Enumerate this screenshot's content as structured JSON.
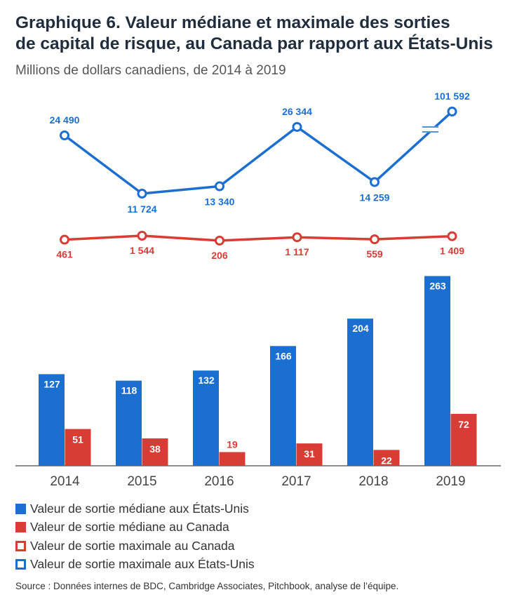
{
  "header": {
    "title_line1": "Graphique 6. Valeur médiane et maximale des sorties",
    "title_line2": "de capital de risque, au Canada par rapport aux États-Unis",
    "subtitle": "Millions de dollars canadiens, de 2014 à 2019"
  },
  "colors": {
    "us": "#1a6fd1",
    "canada": "#d93b35"
  },
  "chart_data": {
    "type": "bar",
    "categories": [
      "2014",
      "2015",
      "2016",
      "2017",
      "2018",
      "2019"
    ],
    "series": [
      {
        "name": "Valeur de sortie médiane aux États-Unis",
        "type": "bar",
        "values": [
          127,
          118,
          132,
          166,
          204,
          263
        ],
        "labels": [
          "127",
          "118",
          "132",
          "166",
          "204",
          "263"
        ]
      },
      {
        "name": "Valeur de sortie médiane au Canada",
        "type": "bar",
        "values": [
          51,
          38,
          19,
          31,
          22,
          72
        ],
        "labels": [
          "51",
          "38",
          "19",
          "31",
          "22",
          "72"
        ]
      },
      {
        "name": "Valeur de sortie maximale au Canada",
        "type": "line",
        "values": [
          461,
          1544,
          206,
          1117,
          559,
          1409
        ],
        "labels": [
          "461",
          "1 544",
          "206",
          "1 117",
          "559",
          "1 409"
        ]
      },
      {
        "name": "Valeur de sortie maximale aux États-Unis",
        "type": "line",
        "values": [
          24490,
          11724,
          13340,
          26344,
          14259,
          101592
        ],
        "labels": [
          "24 490",
          "11 724",
          "13 340",
          "26 344",
          "14 259",
          "101 592"
        ]
      }
    ],
    "axis_break_on": "Valeur de sortie maximale aux États-Unis 2019",
    "grid": false
  },
  "legend": [
    {
      "label": "Valeur de sortie médiane aux États-Unis",
      "style": "filled",
      "color": "#1a6fd1"
    },
    {
      "label": "Valeur de sortie médiane au Canada",
      "style": "filled",
      "color": "#d93b35"
    },
    {
      "label": "Valeur de sortie maximale au Canada",
      "style": "outline",
      "color": "#d93b35"
    },
    {
      "label": "Valeur de sortie maximale aux États-Unis",
      "style": "outline",
      "color": "#1a6fd1"
    }
  ],
  "source": "Source : Données internes de BDC, Cambridge Associates, Pitchbook, analyse de l’équipe."
}
